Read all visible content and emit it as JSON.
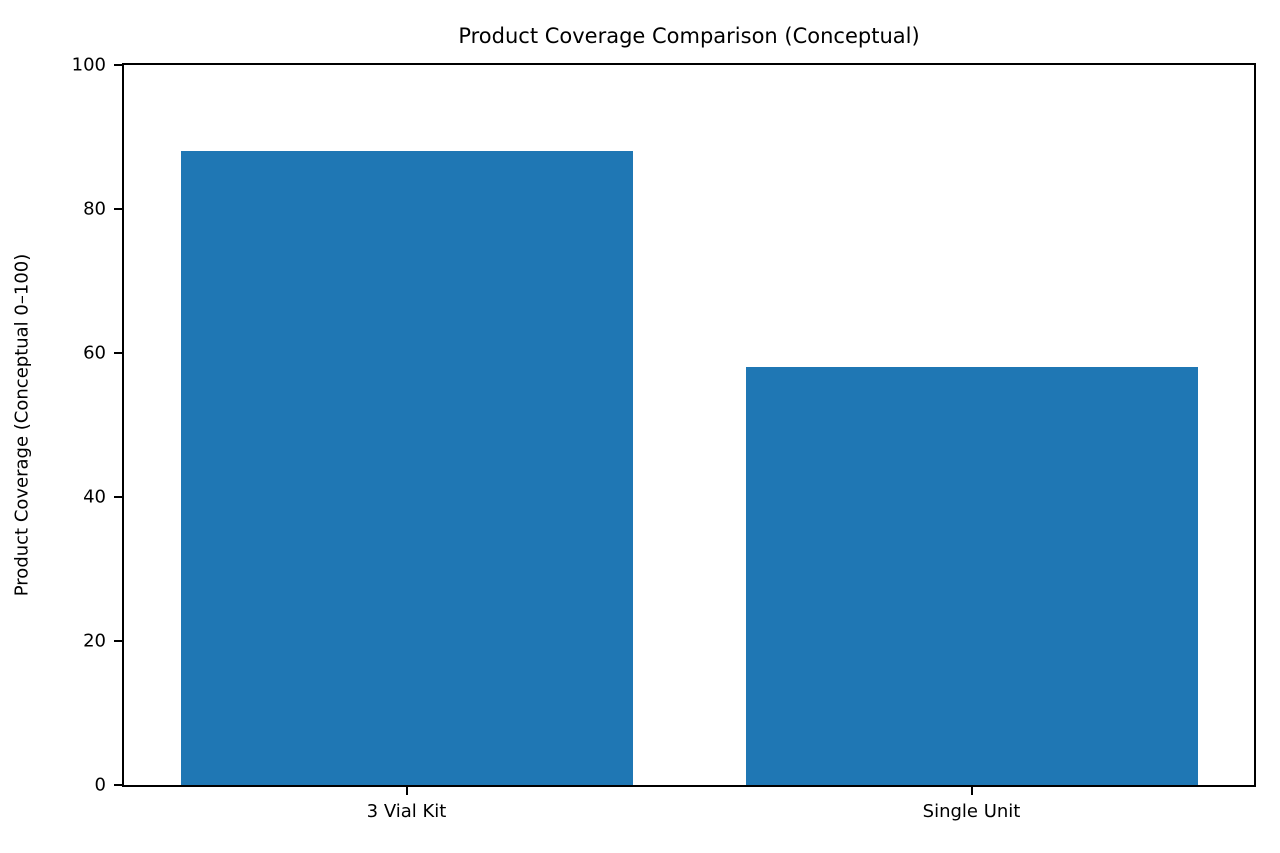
{
  "chart_data": {
    "type": "bar",
    "title": "Product Coverage Comparison (Conceptual)",
    "categories": [
      "3 Vial Kit",
      "Single Unit"
    ],
    "values": [
      88,
      58
    ],
    "xlabel": "",
    "ylabel": "Product Coverage (Conceptual 0–100)",
    "ylim": [
      0,
      100
    ],
    "yticks": [
      0,
      20,
      40,
      60,
      80,
      100
    ],
    "bar_color": "#1f77b4",
    "bar_width_fraction": 0.8,
    "grid": false,
    "legend_position": "none",
    "background_color": "#ffffff",
    "spine_color": "#000000"
  }
}
